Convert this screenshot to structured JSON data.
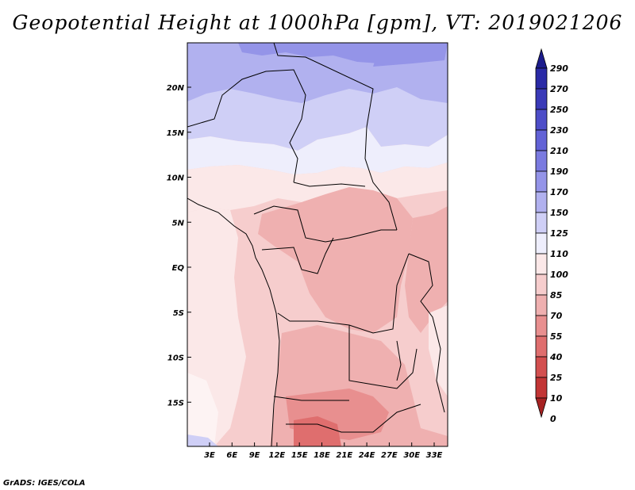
{
  "title": "Geopotential Height at 1000hPa [gpm], VT: 2019021206",
  "credit": "GrADS: IGES/COLA",
  "map": {
    "variable": "Geopotential Height",
    "level": "1000hPa",
    "units": "gpm",
    "valid_time": "2019021206",
    "lat_labels": [
      "20N",
      "15N",
      "10N",
      "5N",
      "EQ",
      "5S",
      "10S",
      "15S"
    ],
    "lon_labels": [
      "3E",
      "6E",
      "9E",
      "12E",
      "15E",
      "18E",
      "21E",
      "24E",
      "27E",
      "30E",
      "33E"
    ]
  },
  "colorbar": {
    "labels": [
      "290",
      "270",
      "250",
      "230",
      "210",
      "190",
      "170",
      "150",
      "125",
      "110",
      "100",
      "85",
      "70",
      "55",
      "40",
      "25",
      "10",
      "0"
    ],
    "colors": [
      "#1c1c8c",
      "#2a2aa6",
      "#3a3ab8",
      "#4d4dc8",
      "#6262d6",
      "#7a7ae0",
      "#9494e8",
      "#b1b1ef",
      "#cfcff6",
      "#eeeefc",
      "#fbe8e8",
      "#f6cdcd",
      "#efb0b0",
      "#e88f8f",
      "#df6e6e",
      "#d34f4f",
      "#c23535",
      "#a62222"
    ]
  }
}
